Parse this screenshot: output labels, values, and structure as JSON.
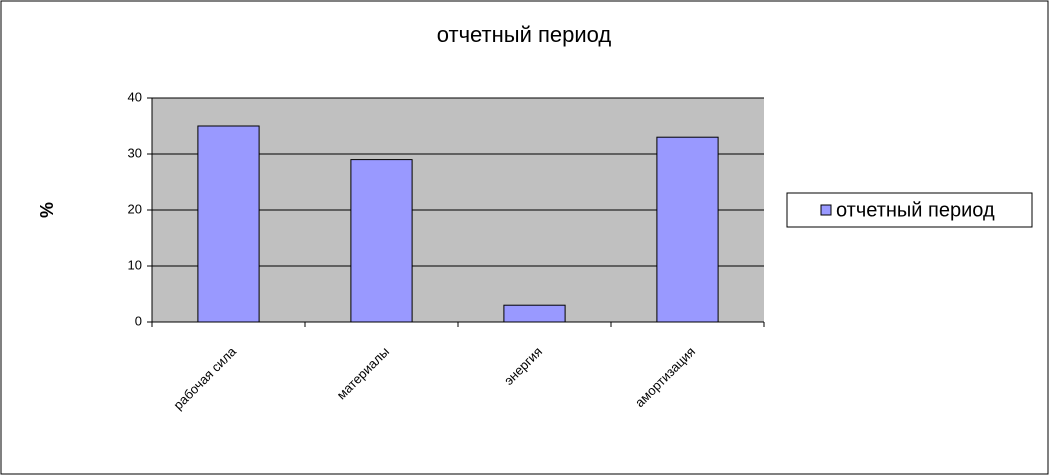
{
  "chart_data": {
    "type": "bar",
    "title": "отчетный период",
    "y_label": "%",
    "categories": [
      "рабочая сила",
      "материалы",
      "энергия",
      "амортизация"
    ],
    "series": [
      {
        "name": "отчетный период",
        "color": "#9999ff",
        "values": [
          35,
          29,
          3,
          33
        ]
      }
    ],
    "ylim": [
      0,
      40
    ],
    "yticks": [
      0,
      10,
      20,
      30,
      40
    ],
    "grid": true,
    "legend": "right"
  }
}
